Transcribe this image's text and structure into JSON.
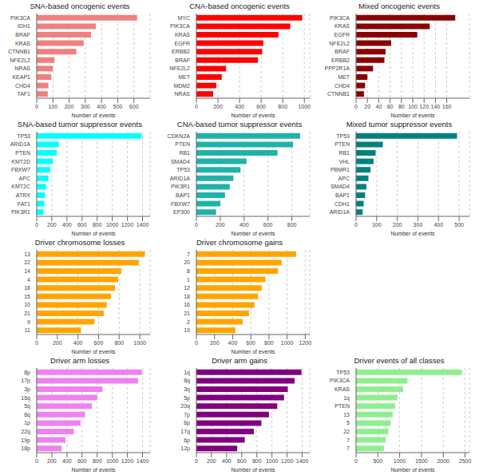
{
  "chart_data": [
    {
      "type": "bar",
      "orientation": "horizontal",
      "title": "SNA-based oncogenic events",
      "xlabel": "Number of events",
      "categories": [
        "PIK3CA",
        "IDH1",
        "BRAF",
        "KRAS",
        "CTNNB1",
        "NFE2L2",
        "NRAS",
        "KEAP1",
        "CHD4",
        "TAF1"
      ],
      "values": [
        620,
        365,
        335,
        290,
        245,
        110,
        100,
        90,
        72,
        68
      ],
      "color": "#F08080",
      "xlim": [
        0,
        700
      ],
      "xticks": [
        0,
        100,
        200,
        300,
        400,
        500,
        600
      ],
      "grid": true
    },
    {
      "type": "bar",
      "orientation": "horizontal",
      "title": "CNA-based oncogenic events",
      "xlabel": "Number of events",
      "categories": [
        "MYC",
        "PIK3CA",
        "KRAS",
        "EGFR",
        "ERBB2",
        "BRAF",
        "NFE2L2",
        "MET",
        "MDM2",
        "NRAS"
      ],
      "values": [
        980,
        870,
        760,
        620,
        610,
        570,
        275,
        235,
        185,
        155
      ],
      "color": "#FF0000",
      "xlim": [
        0,
        1050
      ],
      "xticks": [
        0,
        200,
        400,
        600,
        800,
        1000
      ],
      "grid": true
    },
    {
      "type": "bar",
      "orientation": "horizontal",
      "title": "Mixed oncogenic events",
      "xlabel": "Number of events",
      "categories": [
        "PIK3CA",
        "KRAS",
        "EGFR",
        "NFE2L2",
        "BRAF",
        "ERBB2",
        "PPP2R1A",
        "MET",
        "CHD4",
        "CTNNB1"
      ],
      "values": [
        175,
        130,
        108,
        62,
        52,
        50,
        30,
        20,
        16,
        14
      ],
      "color": "#8B0000",
      "xlim": [
        0,
        200
      ],
      "xticks": [
        0,
        20,
        40,
        60,
        80,
        100,
        120,
        140,
        160
      ],
      "grid": true
    },
    {
      "type": "bar",
      "orientation": "horizontal",
      "title": "SNA-based tumor suppressor events",
      "xlabel": "Number of events",
      "categories": [
        "TP53",
        "ARID1A",
        "PTEN",
        "KMT2D",
        "FBXW7",
        "APC",
        "KMT2C",
        "ATRX",
        "FAT1",
        "PIK3R1"
      ],
      "values": [
        1390,
        290,
        265,
        215,
        180,
        155,
        125,
        110,
        100,
        90
      ],
      "color": "#00FFFF",
      "xlim": [
        0,
        1500
      ],
      "xticks": [
        0,
        200,
        400,
        600,
        800,
        1000,
        1200,
        1400
      ],
      "grid": true
    },
    {
      "type": "bar",
      "orientation": "horizontal",
      "title": "CNA-based tumor suppressor events",
      "xlabel": "Number of events",
      "categories": [
        "CDKN2A",
        "PTEN",
        "RB1",
        "SMAD4",
        "TP53",
        "ARID1A",
        "PIK3R1",
        "BAP1",
        "FBXW7",
        "EP300"
      ],
      "values": [
        870,
        810,
        680,
        420,
        370,
        310,
        280,
        240,
        200,
        165
      ],
      "color": "#20B2AA",
      "xlim": [
        0,
        950
      ],
      "xticks": [
        0,
        200,
        400,
        600,
        800
      ],
      "grid": true
    },
    {
      "type": "bar",
      "orientation": "horizontal",
      "title": "Mixed tumor suppressor events",
      "xlabel": "Number of events",
      "categories": [
        "TP53",
        "PTEN",
        "RB1",
        "VHL",
        "PBMR1",
        "APC",
        "SMAD4",
        "BAP1",
        "CDH1",
        "ARID1A"
      ],
      "values": [
        490,
        130,
        95,
        85,
        70,
        60,
        50,
        44,
        37,
        32
      ],
      "color": "#008080",
      "xlim": [
        0,
        550
      ],
      "xticks": [
        0,
        100,
        200,
        300,
        400,
        500
      ],
      "grid": true
    },
    {
      "type": "bar",
      "orientation": "horizontal",
      "title": "Driver chromosome losses",
      "xlabel": "Number of events",
      "categories": [
        "13",
        "22",
        "14",
        "4",
        "18",
        "15",
        "10",
        "21",
        "9",
        "11"
      ],
      "values": [
        1050,
        990,
        820,
        790,
        760,
        720,
        680,
        650,
        560,
        430
      ],
      "color": "#FFA500",
      "xlim": [
        0,
        1100
      ],
      "xticks": [
        0,
        200,
        400,
        600,
        800,
        1000
      ],
      "grid": true
    },
    {
      "type": "bar",
      "orientation": "horizontal",
      "title": "Driver chromosome gains",
      "xlabel": "Number of events",
      "categories": [
        "7",
        "20",
        "8",
        "1",
        "12",
        "18",
        "16",
        "21",
        "2",
        "19"
      ],
      "values": [
        1100,
        940,
        900,
        760,
        720,
        680,
        640,
        580,
        510,
        430
      ],
      "color": "#FFA500",
      "xlim": [
        0,
        1250
      ],
      "xticks": [
        0,
        200,
        400,
        600,
        800,
        1000,
        1200
      ],
      "grid": true
    },
    {
      "type": "bar",
      "orientation": "horizontal",
      "title": "Driver arm losses",
      "xlabel": "Number of events",
      "categories": [
        "8p",
        "17p",
        "3p",
        "16q",
        "5q",
        "6q",
        "1p",
        "22q",
        "19p",
        "18p"
      ],
      "values": [
        1390,
        1340,
        870,
        800,
        730,
        640,
        580,
        490,
        380,
        330
      ],
      "color": "#EE82EE",
      "xlim": [
        0,
        1500
      ],
      "xticks": [
        0,
        200,
        400,
        600,
        800,
        1000,
        1200,
        1400
      ],
      "grid": true
    },
    {
      "type": "bar",
      "orientation": "horizontal",
      "title": "Driver arm gains",
      "xlabel": "Number of events",
      "categories": [
        "1q",
        "8q",
        "3q",
        "5p",
        "20q",
        "7p",
        "6p",
        "17q",
        "6p",
        "12p"
      ],
      "values": [
        1390,
        1300,
        1210,
        1160,
        1070,
        960,
        860,
        760,
        640,
        540
      ],
      "color": "#800080",
      "xlim": [
        0,
        1500
      ],
      "xticks": [
        0,
        200,
        400,
        600,
        800,
        1000,
        1200,
        1400
      ],
      "grid": true
    },
    {
      "type": "bar",
      "orientation": "horizontal",
      "title": "Driver events of all classes",
      "xlabel": "Number of events",
      "categories": [
        "TP53",
        "PIK3CA",
        "KRAS",
        "1q",
        "PTEN",
        "13",
        "5",
        "22",
        "7",
        "7"
      ],
      "values": [
        2430,
        1180,
        1080,
        950,
        900,
        840,
        790,
        740,
        680,
        640
      ],
      "color": "#90EE90",
      "xlim": [
        0,
        2600
      ],
      "xticks": [
        0,
        500,
        1000,
        1500,
        2000,
        2500
      ],
      "grid": true
    }
  ]
}
